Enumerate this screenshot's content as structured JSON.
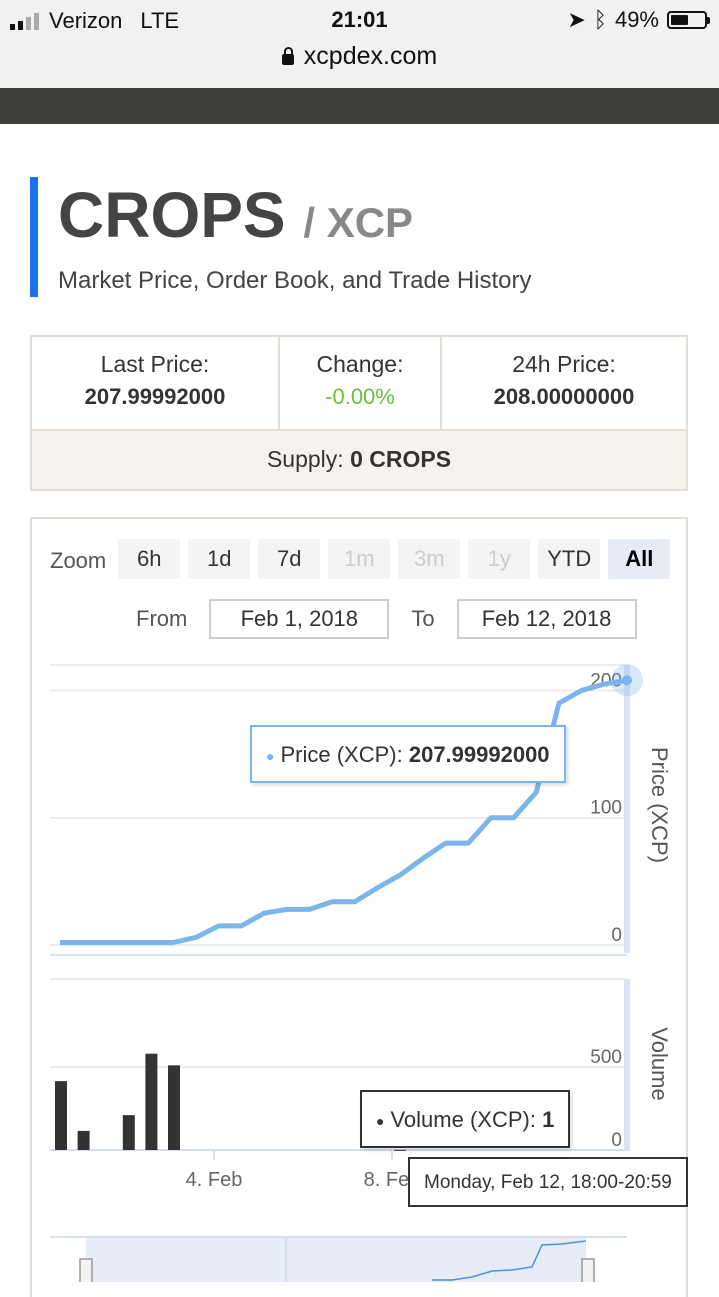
{
  "status_bar": {
    "carrier": "Verizon",
    "network": "LTE",
    "time": "21:01",
    "battery": "49%",
    "battery_level": 0.49,
    "url": "xcpdex.com"
  },
  "header": {
    "title": "CROPS",
    "pair": "/ XCP",
    "subtitle": "Market Price, Order Book, and Trade History"
  },
  "stats": {
    "last_price_label": "Last Price:",
    "last_price": "207.99992000",
    "change_label": "Change:",
    "change": "-0.00%",
    "high_label": "24h Price:",
    "high": "208.00000000",
    "supply_label": "Supply:",
    "supply": "0 CROPS"
  },
  "chart": {
    "zoom_label": "Zoom",
    "zoom_buttons": [
      "6h",
      "1d",
      "7d",
      "1m",
      "3m",
      "1y",
      "YTD",
      "All"
    ],
    "from_label": "From",
    "from_value": "Feb 1, 2018",
    "to_label": "To",
    "to_value": "Feb 12, 2018",
    "price_tooltip_label": "Price (XCP):",
    "price_tooltip_value": "207.99992000",
    "volume_tooltip_label": "Volume (XCP):",
    "volume_tooltip_value": "1",
    "date_tooltip": "Monday, Feb 12, 18:00-20:59",
    "colors": {
      "price_line": "#7cb5ec",
      "volume_bars": "#333333",
      "accent": "#1a73e8"
    }
  },
  "chart_data": [
    {
      "type": "line",
      "ylabel": "Price (XCP)",
      "ylim": [
        0,
        220
      ],
      "yticks": [
        0,
        100,
        200
      ],
      "series": [
        {
          "name": "Price (XCP)",
          "x": [
            0,
            1,
            2,
            3,
            4,
            5,
            6,
            7,
            8,
            9,
            10,
            11,
            12,
            13,
            14,
            15,
            16,
            17,
            18,
            19,
            20,
            21,
            22,
            23,
            24,
            25
          ],
          "values": [
            2,
            2,
            2,
            2,
            2,
            2,
            6,
            15,
            15,
            25,
            28,
            28,
            34,
            34,
            45,
            55,
            68,
            80,
            80,
            100,
            100,
            120,
            190,
            200,
            205,
            208
          ]
        }
      ]
    },
    {
      "type": "bar",
      "ylabel": "Volume",
      "ylim": [
        0,
        1000
      ],
      "yticks": [
        0,
        500
      ],
      "xticks": [
        "4. Feb",
        "8. Feb"
      ],
      "series": [
        {
          "name": "Volume (XCP)",
          "x": [
            0,
            1,
            3,
            4,
            5,
            15
          ],
          "values": [
            415,
            115,
            210,
            580,
            510,
            1
          ]
        }
      ]
    }
  ]
}
